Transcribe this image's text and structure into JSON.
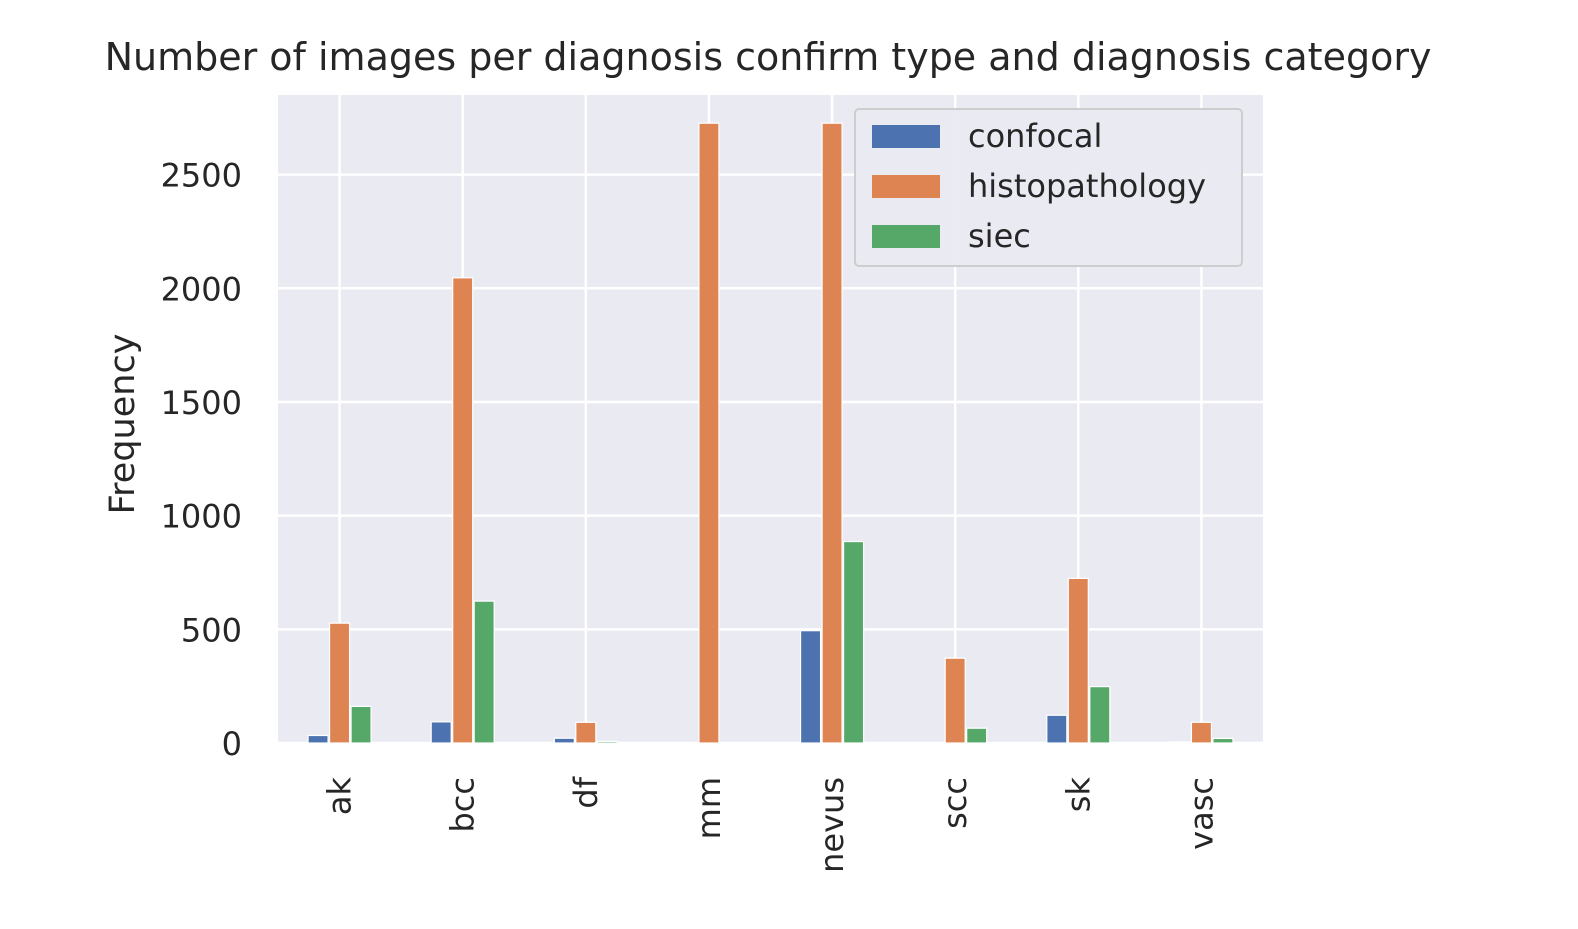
{
  "chart_data": {
    "type": "bar",
    "title": "Number of images per diagnosis confirm type and diagnosis category",
    "xlabel": "",
    "ylabel": "Frequency",
    "categories": [
      "ak",
      "bcc",
      "df",
      "mm",
      "nevus",
      "scc",
      "sk",
      "vasc"
    ],
    "series": [
      {
        "name": "confocal",
        "color": "#4c72b0",
        "values": [
          33,
          93,
          21,
          0,
          494,
          0,
          122,
          5
        ]
      },
      {
        "name": "histopathology",
        "color": "#dd8452",
        "values": [
          527,
          2046,
          91,
          2726,
          2726,
          373,
          724,
          91
        ]
      },
      {
        "name": "siec",
        "color": "#55a868",
        "values": [
          161,
          624,
          7,
          0,
          886,
          65,
          248,
          20
        ]
      }
    ],
    "ylim": [
      0,
      2850
    ],
    "yticks": [
      0,
      500,
      1000,
      1500,
      2000,
      2500
    ],
    "ytick_labels": [
      "0",
      "500",
      "1000",
      "1500",
      "2000",
      "2500"
    ],
    "grid": true,
    "legend_position": "top-right",
    "colors": {
      "background": "#eaeaf2",
      "grid": "#ffffff",
      "text": "#262626"
    }
  }
}
